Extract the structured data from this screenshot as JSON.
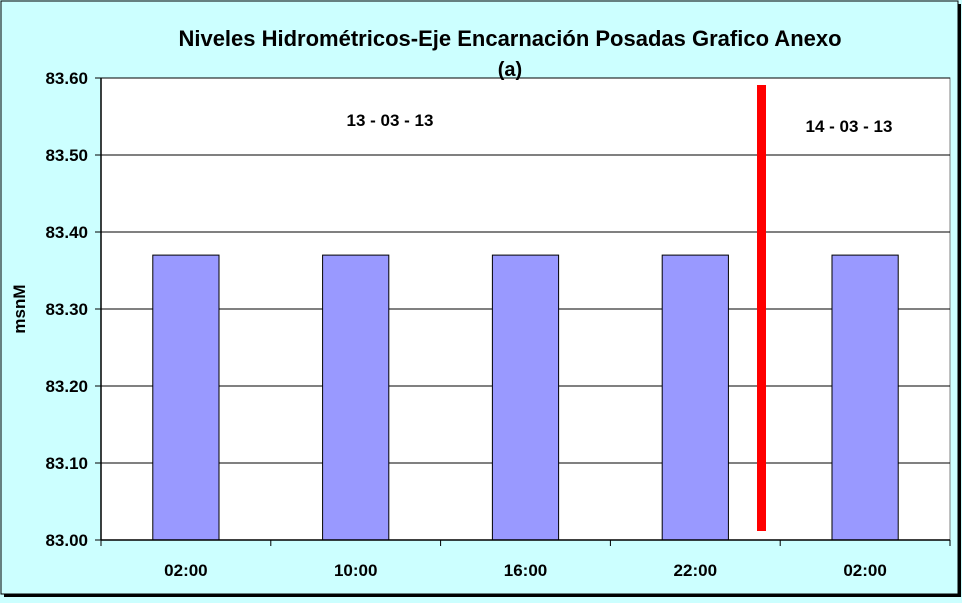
{
  "chart_data": {
    "type": "bar",
    "title": "Niveles Hidrométricos-Eje Encarnación Posadas Grafico Anexo",
    "subtitle": "(a)",
    "xlabel": "",
    "ylabel": "msnM",
    "categories": [
      "02:00",
      "10:00",
      "16:00",
      "22:00",
      "02:00"
    ],
    "values": [
      83.37,
      83.37,
      83.37,
      83.37,
      83.37
    ],
    "ylim": [
      83.0,
      83.6
    ],
    "yticks": [
      "83.00",
      "83.10",
      "83.20",
      "83.30",
      "83.40",
      "83.50",
      "83.60"
    ],
    "grid": true,
    "legend": "none",
    "bar_color": "#9999ff",
    "background_color": "#ccffff",
    "plot_background_color": "#ffffff",
    "separator_color": "#ff0000",
    "annotations": [
      {
        "text": "13 - 03 - 13"
      },
      {
        "text": "14 - 03 - 13"
      }
    ]
  }
}
